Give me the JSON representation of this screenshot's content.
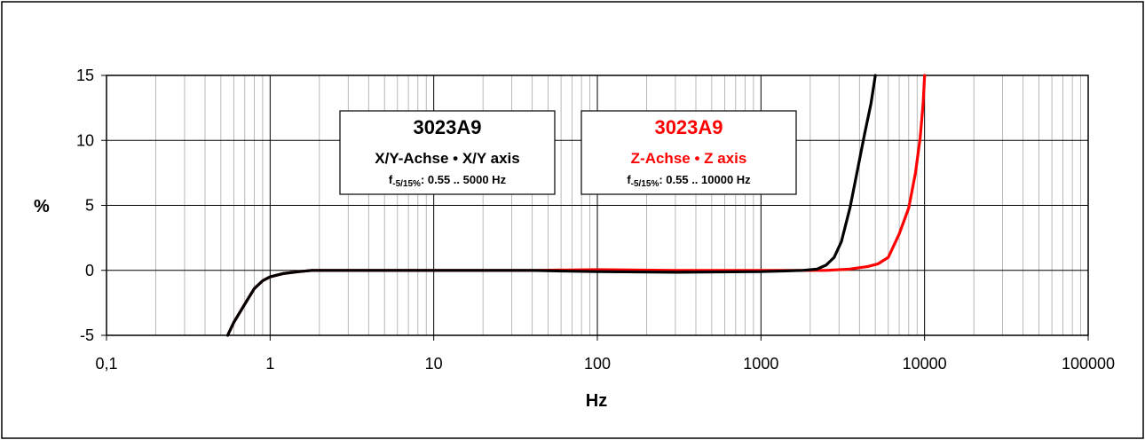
{
  "chart_data": {
    "type": "line",
    "x_scale": "log",
    "xlim": [
      0.1,
      100000
    ],
    "ylim": [
      -5,
      15
    ],
    "xlabel": "Hz",
    "ylabel": "%",
    "x_tick_labels": [
      "0,1",
      "1",
      "10",
      "100",
      "1000",
      "10000",
      "100000"
    ],
    "y_tick_labels": [
      "15",
      "10",
      "5",
      "0",
      "-5"
    ],
    "grid": true,
    "series": [
      {
        "color": "#ff0000",
        "points": [
          [
            0.55,
            -5
          ],
          [
            0.6,
            -4
          ],
          [
            0.7,
            -2.6
          ],
          [
            0.8,
            -1.4
          ],
          [
            0.9,
            -0.8
          ],
          [
            1,
            -0.5
          ],
          [
            1.2,
            -0.25
          ],
          [
            1.5,
            -0.1
          ],
          [
            1.8,
            0
          ],
          [
            10,
            0
          ],
          [
            40,
            0
          ],
          [
            100,
            0.05
          ],
          [
            300,
            0
          ],
          [
            1000,
            0
          ],
          [
            2500,
            0
          ],
          [
            3500,
            0.1
          ],
          [
            4500,
            0.3
          ],
          [
            5200,
            0.5
          ],
          [
            6000,
            1
          ],
          [
            7000,
            2.8
          ],
          [
            8000,
            4.8
          ],
          [
            8800,
            7.5
          ],
          [
            9400,
            10.2
          ],
          [
            9800,
            12.8
          ],
          [
            10000,
            15
          ]
        ]
      },
      {
        "color": "#000000",
        "points": [
          [
            0.55,
            -5
          ],
          [
            0.6,
            -4
          ],
          [
            0.7,
            -2.6
          ],
          [
            0.8,
            -1.4
          ],
          [
            0.9,
            -0.8
          ],
          [
            1,
            -0.5
          ],
          [
            1.2,
            -0.25
          ],
          [
            1.5,
            -0.1
          ],
          [
            1.8,
            0
          ],
          [
            10,
            0
          ],
          [
            40,
            0
          ],
          [
            60,
            -0.05
          ],
          [
            100,
            -0.1
          ],
          [
            300,
            -0.15
          ],
          [
            1000,
            -0.1
          ],
          [
            1800,
            0
          ],
          [
            2200,
            0.1
          ],
          [
            2500,
            0.4
          ],
          [
            2800,
            1
          ],
          [
            3100,
            2.2
          ],
          [
            3500,
            4.8
          ],
          [
            3900,
            7.8
          ],
          [
            4300,
            10.5
          ],
          [
            4700,
            12.8
          ],
          [
            5000,
            15
          ]
        ]
      }
    ],
    "annotations": [
      {
        "color": "#000000",
        "title": "3023A9",
        "subtitle": "X/Y-Achse • X/Y axis",
        "freq_prefix": "f",
        "freq_sub": "-5/15%",
        "freq_text": ":  0.55 .. 5000 Hz"
      },
      {
        "color": "#ff0000",
        "title": "3023A9",
        "subtitle": "Z-Achse • Z axis",
        "freq_prefix": "f",
        "freq_sub": "-5/15%",
        "freq_text": ":  0.55 .. 10000 Hz"
      }
    ]
  }
}
